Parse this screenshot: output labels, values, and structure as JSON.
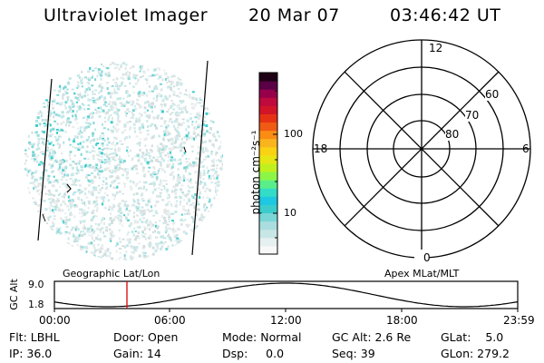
{
  "header": {
    "title": "Ultraviolet Imager",
    "date": "20 Mar 07",
    "time": "03:46:42 UT"
  },
  "colorbar": {
    "unit_label": "photon cm⁻²s⁻¹",
    "ticks": [
      "100",
      "10"
    ],
    "colors": [
      "#f8f8f8",
      "#e6f0f0",
      "#c8e6e6",
      "#aadede",
      "#7ad6d6",
      "#3ccccc",
      "#1ec8e0",
      "#32dcc8",
      "#5aee8a",
      "#8cf646",
      "#c0f01e",
      "#e6e614",
      "#fad214",
      "#fab41e",
      "#fa8c14",
      "#f05a14",
      "#e63214",
      "#d21428",
      "#be0a3c",
      "#96004b",
      "#5a0046",
      "#1e0014"
    ]
  },
  "polar_plot": {
    "labels": {
      "top": "12",
      "bottom": "0",
      "left": "18",
      "right": "6"
    },
    "ring_labels": [
      "60",
      "70",
      "80"
    ]
  },
  "timeline": {
    "ylabel": "GC Alt",
    "ymax": "9.0",
    "ymin": "1.8",
    "left_title": "Geographic Lat/Lon",
    "right_title": "Apex MLat/MLT",
    "time_ticks": [
      "00:00",
      "06:00",
      "12:00",
      "18:00",
      "23:59"
    ],
    "marker_color": "#dd0000"
  },
  "status": {
    "flt": "Flt: LBHL",
    "door": "Door: Open",
    "mode": "Mode: Normal",
    "gcalt": "GC Alt: 2.6 Re",
    "glat": "GLat:    5.0",
    "ip": "IP: 36.0",
    "gain": "Gain: 14",
    "dsp": "Dsp:     0.0",
    "seq": "Seq: 39",
    "glon": "GLon: 279.2"
  }
}
